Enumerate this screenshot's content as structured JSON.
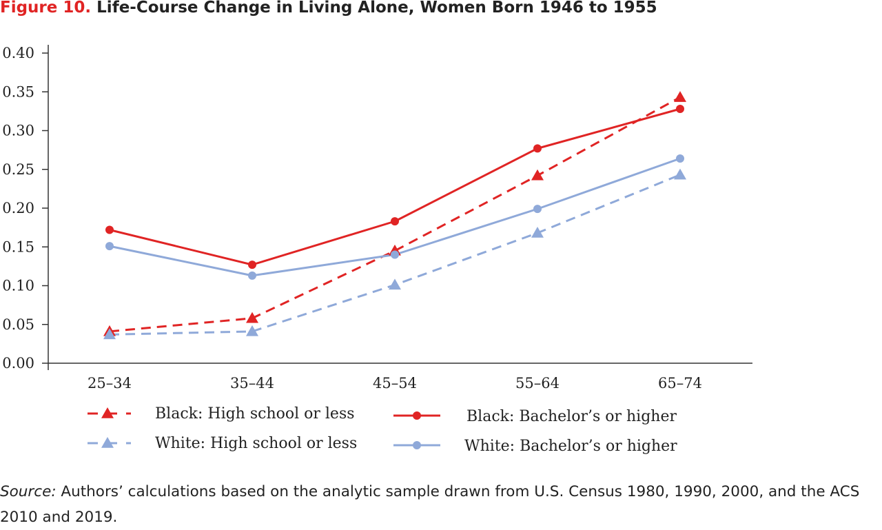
{
  "header": {
    "figure_label": "Figure 10.",
    "figure_title": "Life-Course Change in Living Alone, Women Born 1946 to 1955"
  },
  "footer": {
    "source_label": "Source:",
    "source_text": "Authors’ calculations based on the analytic sample drawn from U.S. Census 1980, 1990, 2000, and the ACS 2010 and 2019."
  },
  "colors": {
    "red": "#e02424",
    "blue": "#8fa9d9",
    "axis": "#333333"
  },
  "chart_data": {
    "type": "line",
    "title": "Life-Course Change in Living Alone, Women Born 1946 to 1955",
    "xlabel": "",
    "ylabel": "",
    "categories": [
      "25–34",
      "35–44",
      "45–54",
      "55–64",
      "65–74"
    ],
    "ylim": [
      0,
      0.4
    ],
    "yticks": [
      "0.00",
      "0.05",
      "0.10",
      "0.15",
      "0.20",
      "0.25",
      "0.30",
      "0.35",
      "0.40"
    ],
    "grid": false,
    "legend_position": "bottom",
    "series": [
      {
        "name": "Black: High school or less",
        "values": [
          0.041,
          0.058,
          0.145,
          0.242,
          0.343
        ],
        "color": "#e02424",
        "line": "dashed",
        "marker": "triangle"
      },
      {
        "name": "White: High school or less",
        "values": [
          0.037,
          0.041,
          0.101,
          0.168,
          0.243
        ],
        "color": "#8fa9d9",
        "line": "dashed",
        "marker": "triangle"
      },
      {
        "name": "Black: Bachelor’s or higher",
        "values": [
          0.172,
          0.127,
          0.183,
          0.277,
          0.328
        ],
        "color": "#e02424",
        "line": "solid",
        "marker": "circle"
      },
      {
        "name": "White: Bachelor’s or higher",
        "values": [
          0.151,
          0.113,
          0.14,
          0.199,
          0.264
        ],
        "color": "#8fa9d9",
        "line": "solid",
        "marker": "circle"
      }
    ]
  }
}
